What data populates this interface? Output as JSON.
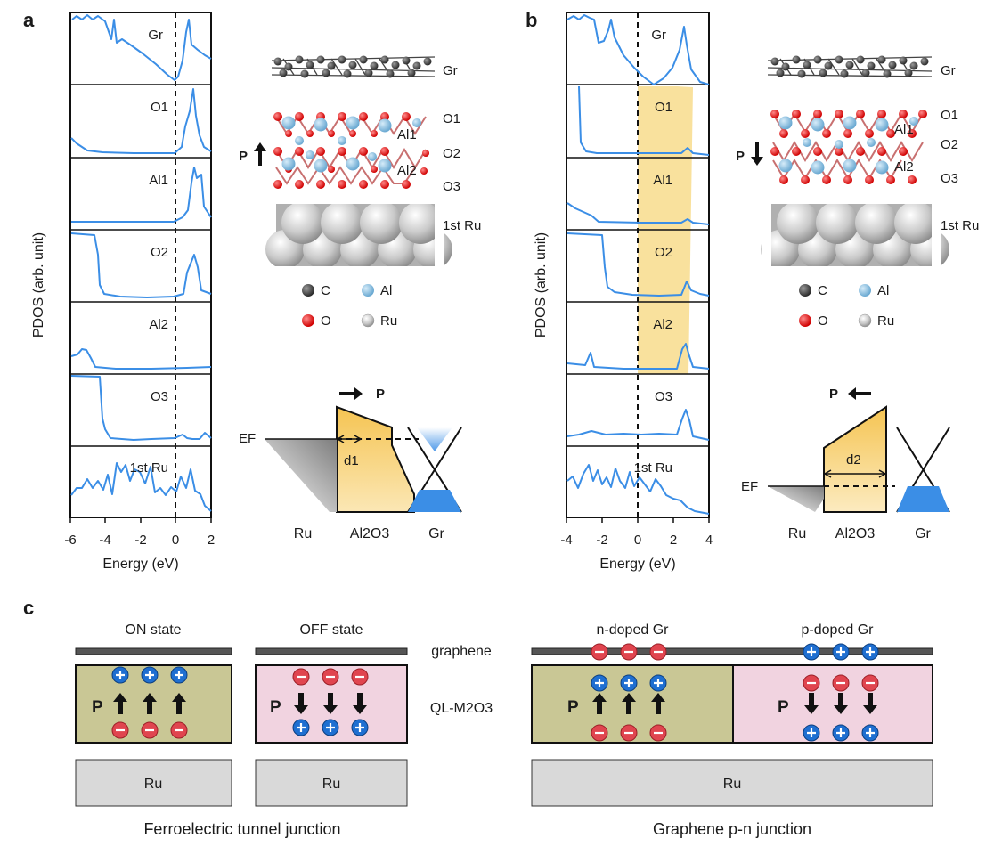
{
  "panel_a": {
    "label": "a",
    "ylabel": "PDOS (arb. unit)",
    "xlabel": "Energy (eV)",
    "xticks": [
      "-6",
      "-4",
      "-2",
      "0",
      "2"
    ],
    "layers": [
      "Gr",
      "O1",
      "Al1",
      "O2",
      "Al2",
      "O3",
      "1st Ru"
    ],
    "structure_labels": [
      "Gr",
      "O1",
      "Al1",
      "O2",
      "Al2",
      "O3",
      "1st Ru"
    ],
    "polarization": "P",
    "band": {
      "ef": "EF",
      "d": "d1",
      "p": "P",
      "ru": "Ru",
      "oxide": "Al2O3",
      "gr": "Gr"
    }
  },
  "panel_b": {
    "label": "b",
    "ylabel": "PDOS (arb. unit)",
    "xlabel": "Energy (eV)",
    "xticks": [
      "-4",
      "-2",
      "0",
      "2",
      "4"
    ],
    "layers": [
      "Gr",
      "O1",
      "Al1",
      "O2",
      "Al2",
      "O3",
      "1st Ru"
    ],
    "structure_labels": [
      "Gr",
      "O1",
      "Al1",
      "O2",
      "Al2",
      "O3",
      "1st Ru"
    ],
    "polarization": "P",
    "band": {
      "ef": "EF",
      "d": "d2",
      "p": "P",
      "ru": "Ru",
      "oxide": "Al2O3",
      "gr": "Gr"
    }
  },
  "legend": {
    "c": "C",
    "al": "Al",
    "o": "O",
    "ru": "Ru"
  },
  "panel_c": {
    "label": "c",
    "on_state": "ON state",
    "off_state": "OFF state",
    "n_doped": "n-doped Gr",
    "p_doped": "p-doped Gr",
    "graphene": "graphene",
    "oxide": "QL-M2O3",
    "p": "P",
    "ru": "Ru",
    "ftj_caption": "Ferroelectric tunnel junction",
    "pn_caption": "Graphene p-n junction"
  },
  "colors": {
    "curve": "#3b8ee6",
    "barrier": "#f5c452",
    "up_domain": "#c9c795",
    "down_domain": "#f1d3e0",
    "plus": "#1f6fd1",
    "minus": "#e0454f",
    "substrate": "#d9d9d9"
  }
}
